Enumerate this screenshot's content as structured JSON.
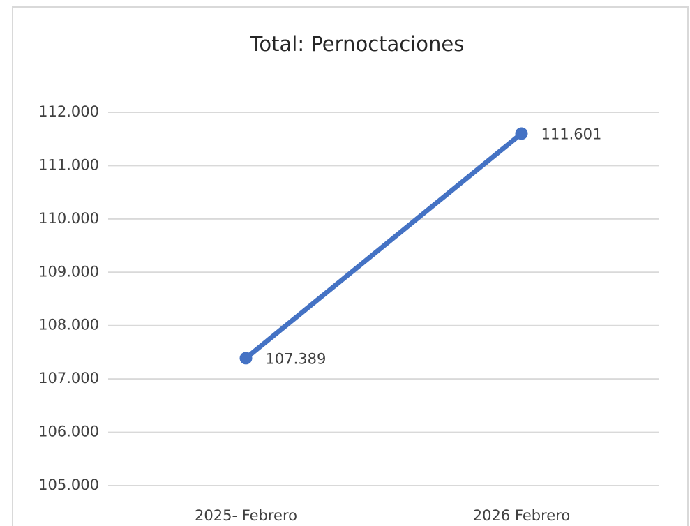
{
  "chart_data": {
    "type": "line",
    "title": "Total: Pernoctaciones",
    "categories": [
      "2025- Febrero",
      "2026 Febrero"
    ],
    "series": [
      {
        "name": "Total: Pernoctaciones",
        "color": "#4472c4",
        "values": [
          107389,
          111601
        ],
        "value_labels": [
          "107.389",
          "111.601"
        ]
      }
    ],
    "ylim": [
      105000,
      112000
    ],
    "yticks": [
      {
        "value": 105000,
        "label": "105.000"
      },
      {
        "value": 106000,
        "label": "106.000"
      },
      {
        "value": 107000,
        "label": "107.000"
      },
      {
        "value": 108000,
        "label": "108.000"
      },
      {
        "value": 109000,
        "label": "109.000"
      },
      {
        "value": 110000,
        "label": "110.000"
      },
      {
        "value": 111000,
        "label": "111.000"
      },
      {
        "value": 112000,
        "label": "112.000"
      }
    ],
    "grid": true
  }
}
